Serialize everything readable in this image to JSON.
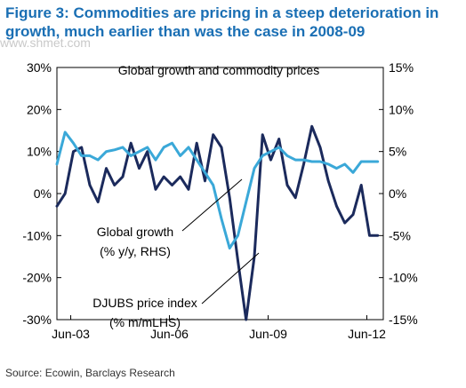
{
  "figure": {
    "title": "Figure 3: Commodities are pricing in a steep deterioration in growth, much earlier than was the case in 2008-09",
    "source": "Source: Ecowin, Barclays Research",
    "watermark": "www.shmet.com"
  },
  "colors": {
    "title": "#1a6fb4",
    "djubs": "#1b2a5c",
    "growth": "#3aa8d8",
    "axis": "#000000"
  },
  "chart_data": {
    "type": "line",
    "title": "Global growth and commodity prices",
    "x_ticks": [
      "Jun-03",
      "Jun-06",
      "Jun-09",
      "Jun-12"
    ],
    "y_left": {
      "ticks": [
        "30%",
        "20%",
        "10%",
        "0%",
        "-10%",
        "-20%",
        "-30%"
      ],
      "lim": [
        -30,
        30
      ]
    },
    "y_right": {
      "ticks": [
        "15%",
        "10%",
        "5%",
        "0%",
        "-5%",
        "-10%",
        "-15%"
      ],
      "lim": [
        -15,
        15
      ]
    },
    "annotations": [
      {
        "lines": [
          "Global growth",
          "(% y/y, RHS)"
        ]
      },
      {
        "lines": [
          "DJUBS price index",
          "(% m/mLHS)"
        ]
      }
    ],
    "series": [
      {
        "name": "DJUBS price index",
        "axis": "left",
        "x": [
          2003.0,
          2003.25,
          2003.5,
          2003.75,
          2004.0,
          2004.25,
          2004.5,
          2004.75,
          2005.0,
          2005.25,
          2005.5,
          2005.75,
          2006.0,
          2006.25,
          2006.5,
          2006.75,
          2007.0,
          2007.25,
          2007.5,
          2007.75,
          2008.0,
          2008.25,
          2008.5,
          2008.75,
          2009.0,
          2009.25,
          2009.5,
          2009.75,
          2010.0,
          2010.25,
          2010.5,
          2010.75,
          2011.0,
          2011.25,
          2011.5,
          2011.75,
          2012.0,
          2012.25,
          2012.5,
          2012.75
        ],
        "y": [
          -3,
          0,
          10,
          11,
          2,
          -2,
          6,
          2,
          4,
          12,
          6,
          10,
          1,
          4,
          2,
          4,
          1,
          12,
          3,
          14,
          11,
          -1,
          -16,
          -30,
          -15,
          14,
          8,
          13,
          2,
          -1,
          7,
          16,
          11,
          3,
          -3,
          -7,
          -5,
          2,
          -10,
          -10
        ]
      },
      {
        "name": "Global growth",
        "axis": "right",
        "x": [
          2003.0,
          2003.25,
          2003.5,
          2003.75,
          2004.0,
          2004.25,
          2004.5,
          2004.75,
          2005.0,
          2005.25,
          2005.5,
          2005.75,
          2006.0,
          2006.25,
          2006.5,
          2006.75,
          2007.0,
          2007.25,
          2007.5,
          2007.75,
          2008.0,
          2008.25,
          2008.5,
          2008.75,
          2009.0,
          2009.25,
          2009.5,
          2009.75,
          2010.0,
          2010.25,
          2010.5,
          2010.75,
          2011.0,
          2011.25,
          2011.5,
          2011.75,
          2012.0,
          2012.25,
          2012.5,
          2012.75
        ],
        "y": [
          3.5,
          7.3,
          6,
          4.5,
          4.5,
          4,
          5,
          5.2,
          5.5,
          4.5,
          5,
          5.5,
          4,
          5.5,
          6,
          4.5,
          5.5,
          4,
          2.5,
          1,
          -3,
          -6.5,
          -5,
          -1,
          3,
          4.5,
          5,
          5.5,
          4.5,
          4,
          4,
          3.8,
          3.8,
          3.5,
          3,
          3.5,
          2.5,
          3.8,
          3.8,
          3.8
        ]
      }
    ]
  }
}
